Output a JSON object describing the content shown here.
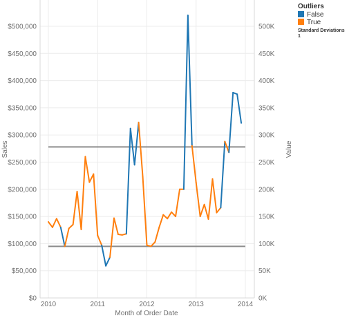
{
  "chart_data": {
    "type": "line",
    "xlabel": "Month of Order Date",
    "ylabel": "Sales",
    "ylabel_right": "Value",
    "x_ticks": [
      "2010",
      "2011",
      "2012",
      "2013",
      "2014"
    ],
    "y_ticks_left": [
      "$0",
      "$50,000",
      "$100,000",
      "$150,000",
      "$200,000",
      "$250,000",
      "$300,000",
      "$350,000",
      "$400,000",
      "$450,000",
      "$500,000"
    ],
    "y_ticks_right": [
      "0K",
      "50K",
      "100K",
      "150K",
      "200K",
      "250K",
      "300K",
      "350K",
      "400K",
      "450K",
      "500K"
    ],
    "ylim": [
      0,
      500000
    ],
    "xlim": [
      "2010-01",
      "2014-01"
    ],
    "grid": true,
    "legend": {
      "title": "Outliers",
      "position": "top-right",
      "items": [
        {
          "label": "False",
          "color": "#1f77b4"
        },
        {
          "label": "True",
          "color": "#ff7f0e"
        }
      ],
      "note_title": "Standard Deviations",
      "note_value": "1"
    },
    "reference_lines": [
      {
        "value": 278000,
        "color": "#8c8c8c"
      },
      {
        "value": 95000,
        "color": "#8c8c8c"
      }
    ],
    "series": [
      {
        "x": [
          "2010-01",
          "2010-02",
          "2010-03",
          "2010-04",
          "2010-05",
          "2010-06",
          "2010-07",
          "2010-08",
          "2010-09",
          "2010-10",
          "2010-11",
          "2010-12",
          "2011-01",
          "2011-02",
          "2011-03",
          "2011-04",
          "2011-05",
          "2011-06",
          "2011-07",
          "2011-08",
          "2011-09",
          "2011-10",
          "2011-11",
          "2011-12",
          "2012-01",
          "2012-02",
          "2012-03",
          "2012-04",
          "2012-05",
          "2012-06",
          "2012-07",
          "2012-08",
          "2012-09",
          "2012-10",
          "2012-11",
          "2012-12",
          "2013-01",
          "2013-02",
          "2013-03",
          "2013-04",
          "2013-05",
          "2013-06",
          "2013-07",
          "2013-08",
          "2013-09",
          "2013-10",
          "2013-11",
          "2013-12"
        ],
        "values": [
          140000,
          130000,
          146000,
          130000,
          95000,
          128000,
          135000,
          196000,
          126000,
          260000,
          213000,
          228000,
          115000,
          97000,
          59000,
          75000,
          147000,
          117000,
          116000,
          118000,
          312000,
          245000,
          323000,
          223000,
          97000,
          95000,
          103000,
          130000,
          153000,
          146000,
          158000,
          150000,
          200000,
          200000,
          520000,
          280000,
          212000,
          150000,
          172000,
          145000,
          219000,
          157000,
          166000,
          288000,
          268000,
          378000,
          375000,
          322000
        ],
        "outlier": [
          true,
          true,
          true,
          true,
          false,
          true,
          true,
          true,
          true,
          true,
          true,
          true,
          true,
          true,
          false,
          false,
          true,
          true,
          true,
          true,
          false,
          false,
          false,
          true,
          true,
          true,
          true,
          true,
          true,
          true,
          true,
          true,
          true,
          true,
          false,
          false,
          true,
          true,
          true,
          true,
          true,
          true,
          true,
          false,
          true,
          false,
          false,
          false
        ]
      }
    ]
  }
}
